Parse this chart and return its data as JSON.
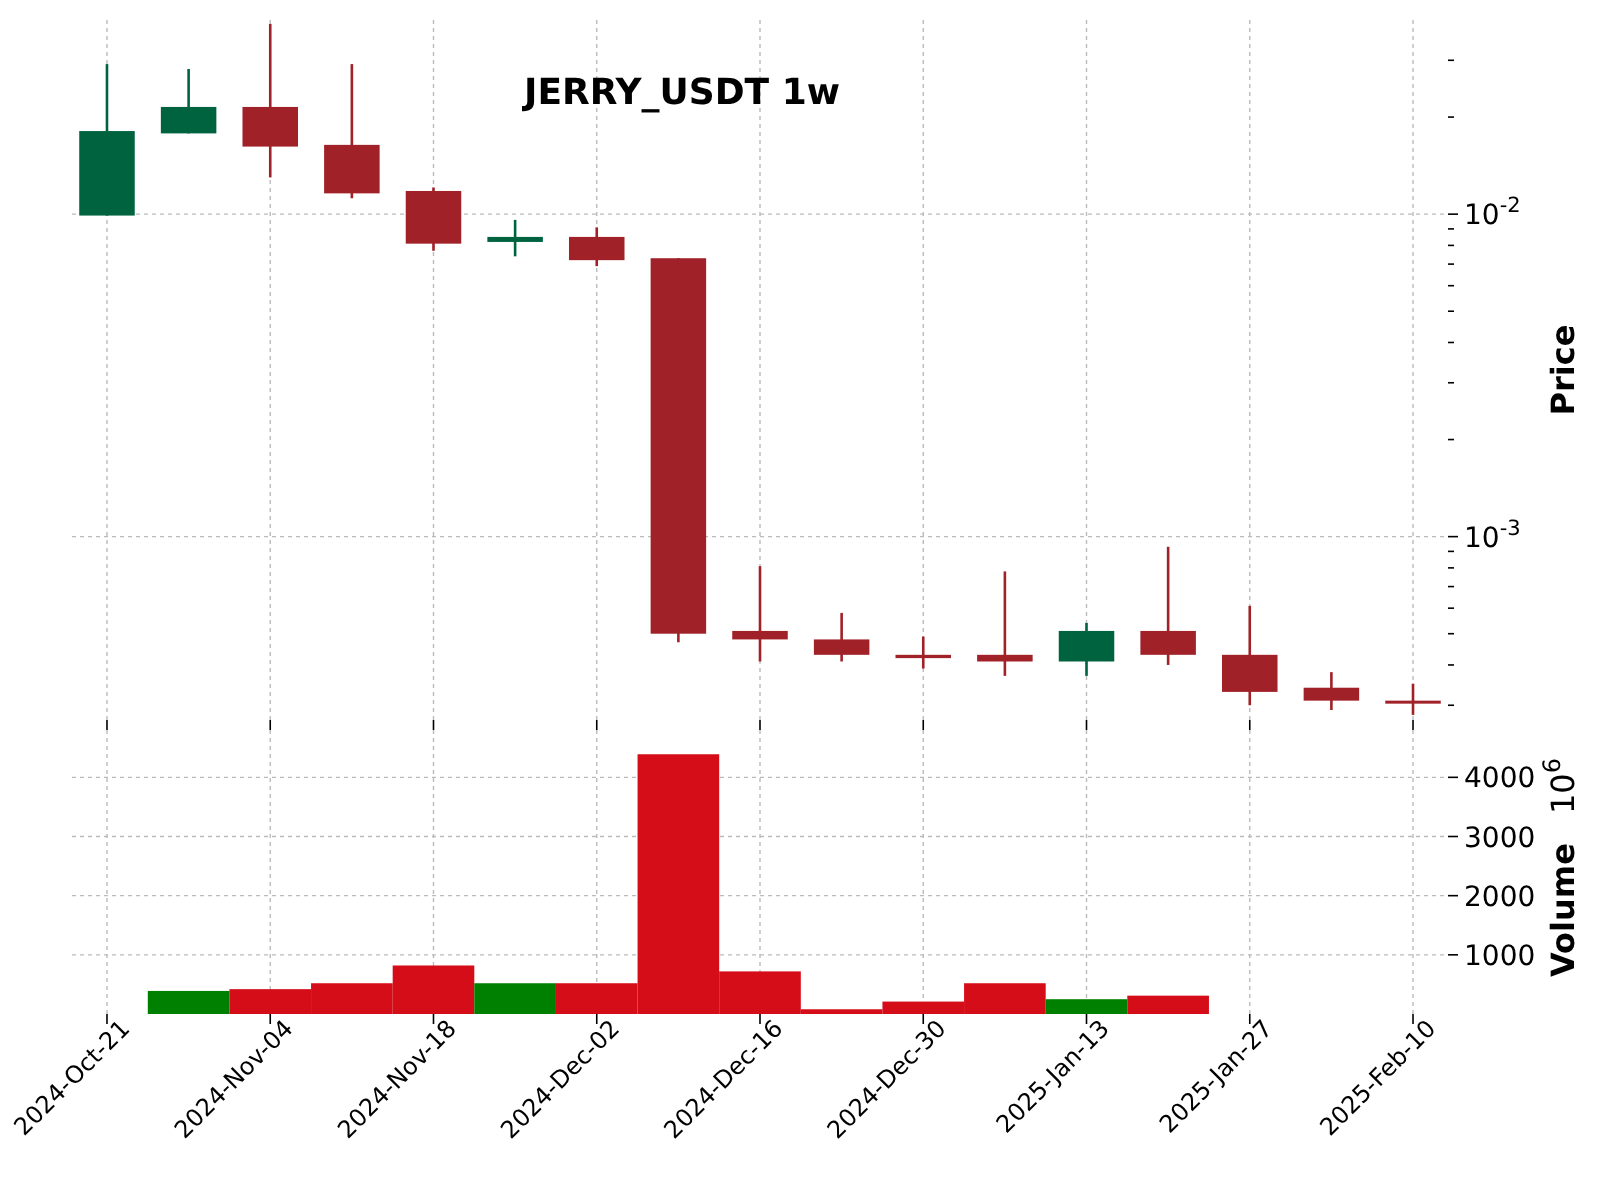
{
  "chart_data": [
    {
      "type": "candlestick",
      "title": "JERRY_USDT 1w",
      "ylabel": "Price",
      "log": true,
      "grid": true,
      "tick_labels": "y",
      "x": [
        "2024-10-21",
        "2024-10-28",
        "2024-11-04",
        "2024-11-11",
        "2024-11-18",
        "2024-11-25",
        "2024-12-02",
        "2024-12-09",
        "2024-12-16",
        "2024-12-23",
        "2024-12-30",
        "2025-01-06",
        "2025-01-13",
        "2025-01-20",
        "2025-01-27",
        "2025-02-03",
        "2025-02-10"
      ],
      "ohlc": [
        [
          0.0099,
          0.0292,
          0.0099,
          0.0181
        ],
        [
          0.0178,
          0.0282,
          0.0178,
          0.0215
        ],
        [
          0.0215,
          0.0389,
          0.013,
          0.0162
        ],
        [
          0.0164,
          0.0292,
          0.0112,
          0.0116
        ],
        [
          0.0118,
          0.0121,
          0.0077,
          0.0081
        ],
        [
          0.0082,
          0.0096,
          0.0074,
          0.0085
        ],
        [
          0.0085,
          0.0091,
          0.0069,
          0.0072
        ],
        [
          0.0073,
          0.0073,
          0.00047,
          0.0005
        ],
        [
          0.00051,
          0.00081,
          0.00041,
          0.00048
        ],
        [
          0.00048,
          0.00058,
          0.00041,
          0.00043
        ],
        [
          0.00043,
          0.00049,
          0.00039,
          0.00042
        ],
        [
          0.00043,
          0.00078,
          0.00037,
          0.00041
        ],
        [
          0.00041,
          0.00054,
          0.00037,
          0.00051
        ],
        [
          0.00051,
          0.00093,
          0.0004,
          0.00043
        ],
        [
          0.00043,
          0.00061,
          0.0003,
          0.00033
        ],
        [
          0.00034,
          0.00038,
          0.00029,
          0.00031
        ],
        [
          0.00031,
          0.00035,
          0.00028,
          0.00031
        ]
      ],
      "colors": [
        "#006340",
        "#006340",
        "#a02128",
        "#a02128",
        "#a02128",
        "#006340",
        "#a02128",
        "#a02128",
        "#a02128",
        "#a02128",
        "#a02128",
        "#a02128",
        "#006340",
        "#a02128",
        "#a02128",
        "#a02128",
        "#a02128"
      ],
      "xlim": [
        "2024-10-18",
        "2025-02-13"
      ],
      "xticks": [
        {
          "value": "2024-10-21",
          "label": null
        },
        {
          "value": "2024-11-04",
          "label": null
        },
        {
          "value": "2024-11-18",
          "label": null
        },
        {
          "value": "2024-12-02",
          "label": null
        },
        {
          "value": "2024-12-16",
          "label": null
        },
        {
          "value": "2024-12-30",
          "label": null
        },
        {
          "value": "2025-01-13",
          "label": null
        },
        {
          "value": "2025-01-27",
          "label": null
        },
        {
          "value": "2025-02-10",
          "label": null
        }
      ],
      "ylim": [
        0.00027,
        0.04
      ],
      "yticks": [
        {
          "value": 0.0003,
          "label": null
        },
        {
          "value": 0.0004,
          "label": null
        },
        {
          "value": 0.0005,
          "label": null
        },
        {
          "value": 0.0006,
          "label": null
        },
        {
          "value": 0.0007,
          "label": null
        },
        {
          "value": 0.0008,
          "label": null
        },
        {
          "value": 0.0009,
          "label": null
        },
        {
          "value": 0.001,
          "label": "10$^{-3}$"
        },
        {
          "value": 0.002,
          "label": null
        },
        {
          "value": 0.003,
          "label": null
        },
        {
          "value": 0.004,
          "label": null
        },
        {
          "value": 0.005,
          "label": null
        },
        {
          "value": 0.006,
          "label": null
        },
        {
          "value": 0.007,
          "label": null
        },
        {
          "value": 0.008,
          "label": null
        },
        {
          "value": 0.009,
          "label": null
        },
        {
          "value": 0.01,
          "label": "10$^{-2}$"
        },
        {
          "value": 0.02,
          "label": null
        },
        {
          "value": 0.03,
          "label": null
        }
      ]
    },
    {
      "type": "bar",
      "ylabel": "Volume",
      "annotations": [
        "10$^{6}$"
      ],
      "grid": true,
      "x": [
        "2024-10-28",
        "2024-11-04",
        "2024-11-11",
        "2024-11-18",
        "2024-11-25",
        "2024-12-02",
        "2024-12-09",
        "2024-12-16",
        "2024-12-23",
        "2024-12-30",
        "2025-01-06",
        "2025-01-13",
        "2025-01-20"
      ],
      "values": [
        390,
        420,
        520,
        820,
        520,
        520,
        4390,
        720,
        80,
        210,
        520,
        250,
        310
      ],
      "colors": [
        "#008000",
        "#d50d18",
        "#d50d18",
        "#d50d18",
        "#008000",
        "#d50d18",
        "#d50d18",
        "#d50d18",
        "#d50d18",
        "#d50d18",
        "#d50d18",
        "#008000",
        "#d50d18"
      ],
      "xlim": [
        "2024-10-18",
        "2025-02-13"
      ],
      "xticks": [
        {
          "value": "2024-10-21",
          "label": "2024-Oct-21"
        },
        {
          "value": "2024-11-04",
          "label": "2024-Nov-04"
        },
        {
          "value": "2024-11-18",
          "label": "2024-Nov-18"
        },
        {
          "value": "2024-12-02",
          "label": "2024-Dec-02"
        },
        {
          "value": "2024-12-16",
          "label": "2024-Dec-16"
        },
        {
          "value": "2024-12-30",
          "label": "2024-Dec-30"
        },
        {
          "value": "2025-01-13",
          "label": "2025-Jan-13"
        },
        {
          "value": "2025-01-27",
          "label": "2025-Jan-27"
        },
        {
          "value": "2025-02-10",
          "label": "2025-Feb-10"
        }
      ],
      "ylim": [
        0,
        4800
      ],
      "yticks": [
        1000,
        2000,
        3000,
        4000
      ]
    }
  ]
}
